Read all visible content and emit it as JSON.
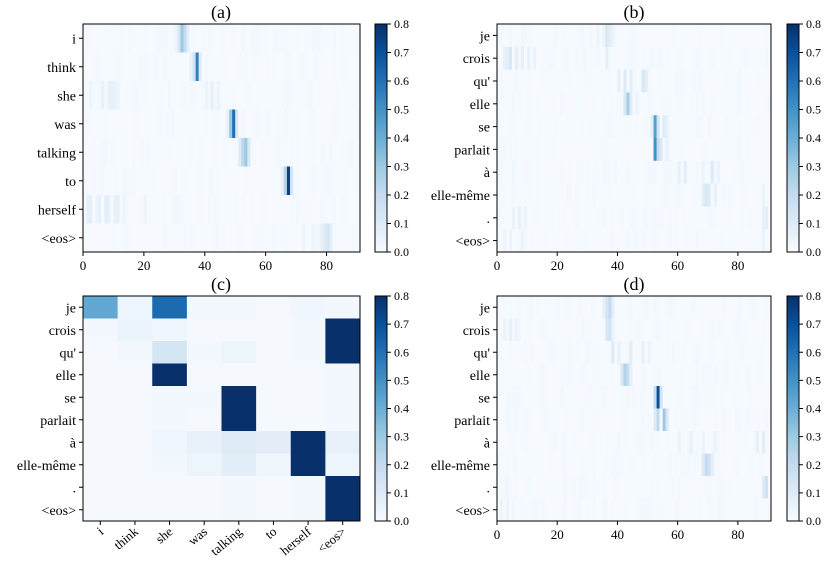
{
  "chart_data": [
    {
      "type": "heatmap",
      "title": "(a)",
      "rows": [
        "i",
        "think",
        "she",
        "was",
        "talking",
        "to",
        "herself",
        "<eos>"
      ],
      "xlim": [
        0,
        91
      ],
      "xticks": [
        0,
        20,
        40,
        60,
        80
      ],
      "xtick_labels": [
        "0",
        "20",
        "40",
        "60",
        "80"
      ],
      "colorbar": {
        "min": 0.0,
        "max": 0.8,
        "ticks": [
          "0.0",
          "0.1",
          "0.2",
          "0.3",
          "0.4",
          "0.5",
          "0.6",
          "0.7",
          "0.8"
        ]
      },
      "peaks": [
        {
          "row": 0,
          "cells": [
            [
              30,
              0.04
            ],
            [
              31,
              0.12
            ],
            [
              32,
              0.3
            ],
            [
              33,
              0.2
            ],
            [
              34,
              0.08
            ]
          ]
        },
        {
          "row": 1,
          "cells": [
            [
              35,
              0.06
            ],
            [
              36,
              0.15
            ],
            [
              37,
              0.55
            ],
            [
              38,
              0.1
            ]
          ]
        },
        {
          "row": 2,
          "cells": [
            [
              2,
              0.04
            ],
            [
              6,
              0.06
            ],
            [
              8,
              0.06
            ],
            [
              9,
              0.07
            ],
            [
              10,
              0.06
            ],
            [
              11,
              0.05
            ],
            [
              40,
              0.05
            ],
            [
              42,
              0.06
            ],
            [
              44,
              0.05
            ]
          ]
        },
        {
          "row": 3,
          "cells": [
            [
              47,
              0.06
            ],
            [
              48,
              0.3
            ],
            [
              49,
              0.6
            ],
            [
              50,
              0.12
            ]
          ]
        },
        {
          "row": 4,
          "cells": [
            [
              51,
              0.1
            ],
            [
              52,
              0.22
            ],
            [
              53,
              0.3
            ],
            [
              54,
              0.12
            ]
          ]
        },
        {
          "row": 5,
          "cells": [
            [
              65,
              0.06
            ],
            [
              66,
              0.25
            ],
            [
              67,
              0.75
            ],
            [
              68,
              0.15
            ]
          ]
        },
        {
          "row": 6,
          "cells": [
            [
              1,
              0.06
            ],
            [
              2,
              0.08
            ],
            [
              4,
              0.05
            ],
            [
              5,
              0.06
            ],
            [
              7,
              0.08
            ],
            [
              8,
              0.07
            ],
            [
              10,
              0.06
            ],
            [
              11,
              0.07
            ],
            [
              13,
              0.04
            ],
            [
              20,
              0.04
            ],
            [
              30,
              0.03
            ]
          ]
        },
        {
          "row": 7,
          "cells": [
            [
              72,
              0.04
            ],
            [
              75,
              0.04
            ],
            [
              78,
              0.07
            ],
            [
              79,
              0.1
            ],
            [
              80,
              0.14
            ],
            [
              81,
              0.07
            ]
          ]
        }
      ]
    },
    {
      "type": "heatmap",
      "title": "(b)",
      "rows": [
        "je",
        "crois",
        "qu'",
        "elle",
        "se",
        "parlait",
        "à",
        "elle-même",
        ".",
        "<eos>"
      ],
      "xlim": [
        0,
        91
      ],
      "xticks": [
        0,
        20,
        40,
        60,
        80
      ],
      "xtick_labels": [
        "0",
        "20",
        "40",
        "60",
        "80"
      ],
      "colorbar": {
        "min": 0.0,
        "max": 0.8,
        "ticks": [
          "0.0",
          "0.1",
          "0.2",
          "0.3",
          "0.4",
          "0.5",
          "0.6",
          "0.7",
          "0.8"
        ]
      },
      "peaks": [
        {
          "row": 0,
          "cells": [
            [
              33,
              0.04
            ],
            [
              35,
              0.05
            ],
            [
              36,
              0.12
            ],
            [
              37,
              0.08
            ],
            [
              38,
              0.05
            ]
          ]
        },
        {
          "row": 1,
          "cells": [
            [
              2,
              0.06
            ],
            [
              3,
              0.08
            ],
            [
              4,
              0.12
            ],
            [
              6,
              0.08
            ],
            [
              8,
              0.07
            ],
            [
              10,
              0.06
            ],
            [
              12,
              0.05
            ],
            [
              36,
              0.07
            ]
          ]
        },
        {
          "row": 2,
          "cells": [
            [
              40,
              0.08
            ],
            [
              42,
              0.1
            ],
            [
              44,
              0.08
            ],
            [
              48,
              0.12
            ],
            [
              49,
              0.09
            ]
          ]
        },
        {
          "row": 3,
          "cells": [
            [
              42,
              0.12
            ],
            [
              43,
              0.28
            ],
            [
              44,
              0.1
            ],
            [
              46,
              0.05
            ]
          ]
        },
        {
          "row": 4,
          "cells": [
            [
              51,
              0.08
            ],
            [
              52,
              0.45
            ],
            [
              53,
              0.15
            ],
            [
              55,
              0.1
            ],
            [
              56,
              0.06
            ]
          ]
        },
        {
          "row": 5,
          "cells": [
            [
              52,
              0.5
            ],
            [
              53,
              0.2
            ],
            [
              54,
              0.12
            ],
            [
              56,
              0.06
            ]
          ]
        },
        {
          "row": 6,
          "cells": [
            [
              5,
              0.03
            ],
            [
              60,
              0.06
            ],
            [
              62,
              0.08
            ],
            [
              68,
              0.05
            ],
            [
              71,
              0.1
            ],
            [
              73,
              0.05
            ]
          ]
        },
        {
          "row": 7,
          "cells": [
            [
              68,
              0.08
            ],
            [
              69,
              0.12
            ],
            [
              70,
              0.1
            ],
            [
              72,
              0.06
            ],
            [
              88,
              0.05
            ]
          ]
        },
        {
          "row": 8,
          "cells": [
            [
              5,
              0.05
            ],
            [
              7,
              0.06
            ],
            [
              9,
              0.05
            ],
            [
              88,
              0.06
            ],
            [
              89,
              0.08
            ]
          ]
        },
        {
          "row": 9,
          "cells": [
            [
              2,
              0.04
            ],
            [
              4,
              0.04
            ],
            [
              8,
              0.05
            ],
            [
              88,
              0.05
            ]
          ]
        }
      ]
    },
    {
      "type": "heatmap",
      "title": "(c)",
      "rows": [
        "je",
        "crois",
        "qu'",
        "elle",
        "se",
        "parlait",
        "à",
        "elle-même",
        ".",
        "<eos>"
      ],
      "columns": [
        "i",
        "think",
        "she",
        "was",
        "talking",
        "to",
        "herself",
        "<eos>"
      ],
      "colorbar": {
        "min": 0.0,
        "max": 0.8,
        "ticks": [
          "0.0",
          "0.1",
          "0.2",
          "0.3",
          "0.4",
          "0.5",
          "0.6",
          "0.7",
          "0.8"
        ]
      },
      "matrix": [
        [
          0.42,
          0.04,
          0.62,
          0.02,
          0.02,
          0.01,
          0.03,
          0.02
        ],
        [
          0.02,
          0.05,
          0.03,
          0.01,
          0.01,
          0.01,
          0.02,
          0.8
        ],
        [
          0.01,
          0.02,
          0.14,
          0.02,
          0.04,
          0.01,
          0.02,
          0.8
        ],
        [
          0.01,
          0.01,
          0.8,
          0.01,
          0.01,
          0.01,
          0.01,
          0.02
        ],
        [
          0.01,
          0.01,
          0.02,
          0.02,
          0.8,
          0.01,
          0.01,
          0.02
        ],
        [
          0.01,
          0.01,
          0.02,
          0.01,
          0.8,
          0.01,
          0.01,
          0.02
        ],
        [
          0.01,
          0.01,
          0.03,
          0.06,
          0.1,
          0.08,
          0.8,
          0.06
        ],
        [
          0.01,
          0.01,
          0.02,
          0.04,
          0.08,
          0.03,
          0.8,
          0.04
        ],
        [
          0.01,
          0.01,
          0.01,
          0.01,
          0.02,
          0.01,
          0.02,
          0.8
        ],
        [
          0.01,
          0.01,
          0.01,
          0.01,
          0.02,
          0.01,
          0.02,
          0.8
        ]
      ]
    },
    {
      "type": "heatmap",
      "title": "(d)",
      "rows": [
        "je",
        "crois",
        "qu'",
        "elle",
        "se",
        "parlait",
        "à",
        "elle-même",
        ".",
        "<eos>"
      ],
      "xlim": [
        0,
        91
      ],
      "xticks": [
        0,
        20,
        40,
        60,
        80
      ],
      "xtick_labels": [
        "0",
        "20",
        "40",
        "60",
        "80"
      ],
      "colorbar": {
        "min": 0.0,
        "max": 0.8,
        "ticks": [
          "0.0",
          "0.1",
          "0.2",
          "0.3",
          "0.4",
          "0.5",
          "0.6",
          "0.7",
          "0.8"
        ]
      },
      "peaks": [
        {
          "row": 0,
          "cells": [
            [
              35,
              0.06
            ],
            [
              36,
              0.14
            ],
            [
              37,
              0.2
            ],
            [
              38,
              0.08
            ]
          ]
        },
        {
          "row": 1,
          "cells": [
            [
              2,
              0.05
            ],
            [
              4,
              0.06
            ],
            [
              6,
              0.05
            ],
            [
              36,
              0.12
            ],
            [
              37,
              0.15
            ],
            [
              38,
              0.05
            ]
          ]
        },
        {
          "row": 2,
          "cells": [
            [
              38,
              0.1
            ],
            [
              40,
              0.06
            ],
            [
              44,
              0.08
            ],
            [
              48,
              0.07
            ],
            [
              50,
              0.05
            ]
          ]
        },
        {
          "row": 3,
          "cells": [
            [
              41,
              0.12
            ],
            [
              42,
              0.25
            ],
            [
              43,
              0.18
            ],
            [
              44,
              0.06
            ]
          ]
        },
        {
          "row": 4,
          "cells": [
            [
              52,
              0.2
            ],
            [
              53,
              0.7
            ],
            [
              54,
              0.15
            ]
          ]
        },
        {
          "row": 5,
          "cells": [
            [
              52,
              0.1
            ],
            [
              53,
              0.22
            ],
            [
              55,
              0.3
            ],
            [
              56,
              0.12
            ]
          ]
        },
        {
          "row": 6,
          "cells": [
            [
              60,
              0.05
            ],
            [
              64,
              0.06
            ],
            [
              68,
              0.05
            ],
            [
              72,
              0.05
            ],
            [
              86,
              0.07
            ],
            [
              88,
              0.08
            ]
          ]
        },
        {
          "row": 7,
          "cells": [
            [
              68,
              0.1
            ],
            [
              69,
              0.2
            ],
            [
              70,
              0.15
            ],
            [
              71,
              0.08
            ]
          ]
        },
        {
          "row": 8,
          "cells": [
            [
              3,
              0.03
            ],
            [
              88,
              0.1
            ],
            [
              89,
              0.16
            ]
          ]
        },
        {
          "row": 9,
          "cells": [
            [
              1,
              0.04
            ],
            [
              3,
              0.04
            ],
            [
              5,
              0.03
            ]
          ]
        }
      ]
    }
  ]
}
